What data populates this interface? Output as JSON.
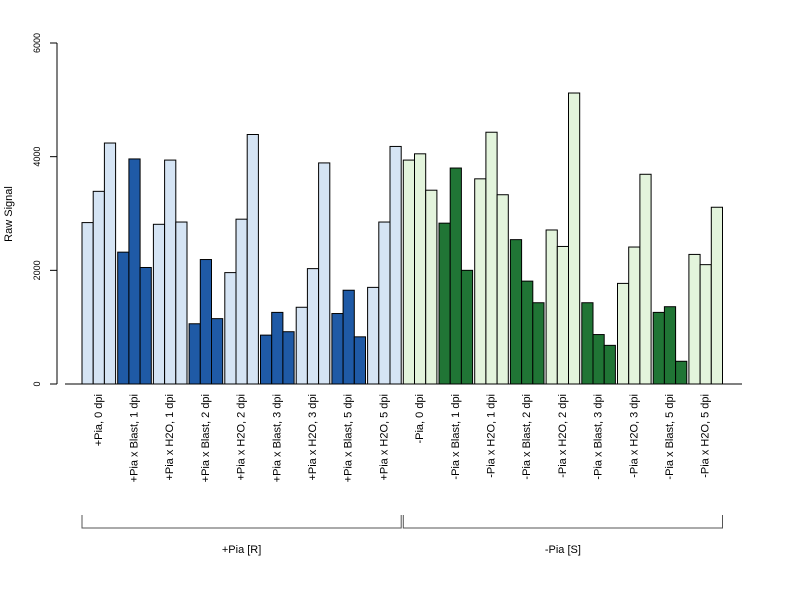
{
  "chart_data": {
    "type": "bar",
    "ylabel": "Raw Signal",
    "ylim": [
      0,
      6000
    ],
    "yticks": [
      0,
      2000,
      4000,
      6000
    ],
    "grid": false,
    "bars_per_category": 3,
    "categories": [
      "+Pia, 0 dpi",
      "+Pia x Blast, 1 dpi",
      "+Pia x H2O, 1 dpi",
      "+Pia x Blast, 2 dpi",
      "+Pia x H2O, 2 dpi",
      "+Pia x Blast, 3 dpi",
      "+Pia x H2O, 3 dpi",
      "+Pia x Blast, 5 dpi",
      "+Pia x H2O, 5 dpi",
      "-Pia, 0 dpi",
      "-Pia x Blast, 1 dpi",
      "-Pia x H2O, 1 dpi",
      "-Pia x Blast, 2 dpi",
      "-Pia x H2O, 2 dpi",
      "-Pia x Blast, 3 dpi",
      "-Pia x H2O, 3 dpi",
      "-Pia x Blast, 5 dpi",
      "-Pia x H2O, 5 dpi"
    ],
    "values": [
      [
        2840,
        3390,
        4240
      ],
      [
        2320,
        3960,
        2050
      ],
      [
        2810,
        3940,
        2850
      ],
      [
        1060,
        2190,
        1150
      ],
      [
        1960,
        2900,
        4390
      ],
      [
        860,
        1260,
        920
      ],
      [
        1350,
        2030,
        3890
      ],
      [
        1240,
        1650,
        830
      ],
      [
        1700,
        2850,
        4180
      ],
      [
        3940,
        4050,
        3410
      ],
      [
        2830,
        3800,
        2000
      ],
      [
        3610,
        4430,
        3330
      ],
      [
        2540,
        1810,
        1430
      ],
      [
        2710,
        2420,
        5120
      ],
      [
        1430,
        870,
        680
      ],
      [
        1770,
        2410,
        3690
      ],
      [
        1260,
        1360,
        400
      ],
      [
        2280,
        2100,
        3110
      ]
    ],
    "bar_colors": [
      "#d5e4f4",
      "#1f5aa6",
      "#d5e4f4",
      "#1f5aa6",
      "#d5e4f4",
      "#1f5aa6",
      "#d5e4f4",
      "#1f5aa6",
      "#d5e4f4",
      "#e3f4dc",
      "#207535",
      "#e3f4dc",
      "#207535",
      "#e3f4dc",
      "#207535",
      "#e3f4dc",
      "#207535",
      "#e3f4dc"
    ],
    "groups": [
      {
        "label": "+Pia [R]",
        "first_category": 0,
        "last_category": 8
      },
      {
        "label": "-Pia [S]",
        "first_category": 9,
        "last_category": 17
      }
    ]
  }
}
